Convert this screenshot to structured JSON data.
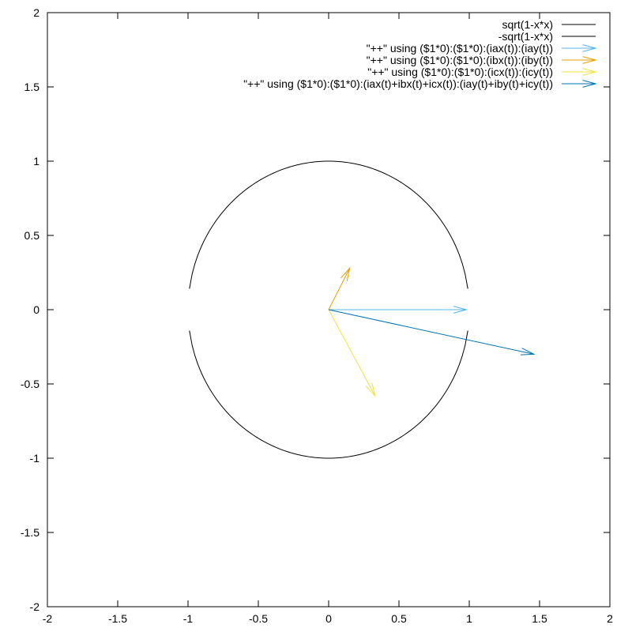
{
  "chart_data": {
    "type": "line",
    "title": "",
    "xlabel": "",
    "ylabel": "",
    "xlim": [
      -2,
      2
    ],
    "ylim": [
      -2,
      2
    ],
    "x_ticks": [
      -2,
      -1.5,
      -1,
      -0.5,
      0,
      0.5,
      1,
      1.5,
      2
    ],
    "y_ticks": [
      -2,
      -1.5,
      -1,
      -0.5,
      0,
      0.5,
      1,
      1.5,
      2
    ],
    "x_tick_labels": [
      "-2",
      "-1.5",
      "-1",
      "-0.5",
      "0",
      "0.5",
      "1",
      "1.5",
      "2"
    ],
    "y_tick_labels": [
      "-2",
      "-1.5",
      "-1",
      "-0.5",
      "0",
      "0.5",
      "1",
      "1.5",
      "2"
    ],
    "grid": false,
    "legend_position": "top-right",
    "curves": [
      {
        "name": "sqrt(1-x*x)",
        "color": "#000000",
        "x_range": [
          -0.99,
          0.99
        ],
        "sign": 1
      },
      {
        "name": "-sqrt(1-x*x)",
        "color": "#000000",
        "x_range": [
          -0.99,
          0.99
        ],
        "sign": -1
      }
    ],
    "vectors": [
      {
        "name": "\"++\" using ($1*0):($1*0):(iax(t)):(iay(t))",
        "color": "#56b4e9",
        "x0": 0,
        "y0": 0,
        "dx": 0.98,
        "dy": 0.0
      },
      {
        "name": "\"++\" using ($1*0):($1*0):(ibx(t)):(iby(t))",
        "color": "#e69f00",
        "x0": 0,
        "y0": 0,
        "dx": 0.15,
        "dy": 0.28
      },
      {
        "name": "\"++\" using ($1*0):($1*0):(icx(t)):(icy(t))",
        "color": "#f0e442",
        "x0": 0,
        "y0": 0,
        "dx": 0.33,
        "dy": -0.58
      },
      {
        "name": "\"++\" using ($1*0):($1*0):(iax(t)+ibx(t)+icx(t)):(iay(t)+iby(t)+icy(t))",
        "color": "#0072b2",
        "x0": 0,
        "y0": 0,
        "dx": 1.46,
        "dy": -0.3
      }
    ]
  }
}
